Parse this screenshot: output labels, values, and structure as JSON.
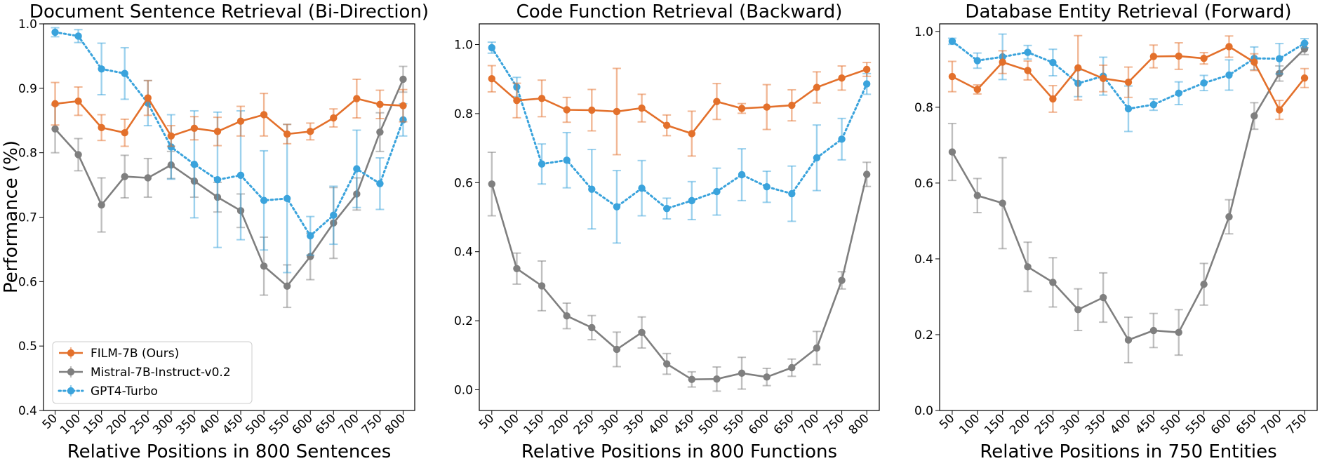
{
  "ylabel": "Performance (%)",
  "colors": {
    "FILM-7B (Ours)": "#e3702b",
    "Mistral-7B-Instruct-v0.2": "#7f7f7f",
    "GPT4-Turbo": "#3aa3dc"
  },
  "legend": {
    "entries": [
      "FILM-7B (Ours)",
      "Mistral-7B-Instruct-v0.2",
      "GPT4-Turbo"
    ],
    "placement": "lower-left of first panel"
  },
  "chart_data": [
    {
      "type": "line",
      "title": "Document Sentence Retrieval (Bi-Direction)",
      "xlabel": "Relative Positions in 800 Sentences",
      "ylabel": "Performance (%)",
      "categories": [
        "50",
        "100",
        "150",
        "200",
        "250",
        "300",
        "350",
        "400",
        "450",
        "500",
        "550",
        "600",
        "650",
        "700",
        "750",
        "800"
      ],
      "ylim": [
        0.4,
        1.0
      ],
      "yticks": [
        "0.4",
        "0.5",
        "0.6",
        "0.7",
        "0.8",
        "0.9",
        "1.0"
      ],
      "series": [
        {
          "name": "FILM-7B (Ours)",
          "style": "solid",
          "values": [
            0.876,
            0.88,
            0.839,
            0.831,
            0.885,
            0.826,
            0.838,
            0.833,
            0.849,
            0.859,
            0.829,
            0.833,
            0.854,
            0.884,
            0.875,
            0.873
          ],
          "errors": [
            0.033,
            0.022,
            0.02,
            0.021,
            0.027,
            0.016,
            0.018,
            0.022,
            0.023,
            0.033,
            0.015,
            0.013,
            0.014,
            0.03,
            0.022,
            0.025
          ]
        },
        {
          "name": "Mistral-7B-Instruct-v0.2",
          "style": "solid",
          "values": [
            0.837,
            0.797,
            0.719,
            0.763,
            0.761,
            0.781,
            0.756,
            0.731,
            0.71,
            0.624,
            0.593,
            0.639,
            0.691,
            0.736,
            0.832,
            0.914
          ],
          "errors": [
            0.037,
            0.025,
            0.042,
            0.033,
            0.03,
            0.021,
            0.025,
            0.023,
            0.026,
            0.045,
            0.033,
            0.036,
            0.055,
            0.025,
            0.03,
            0.02
          ]
        },
        {
          "name": "GPT4-Turbo",
          "style": "dotted",
          "values": [
            0.987,
            0.981,
            0.93,
            0.923,
            0.877,
            0.809,
            0.782,
            0.758,
            0.765,
            0.726,
            0.729,
            0.671,
            0.703,
            0.775,
            0.752,
            0.851
          ],
          "errors": [
            0.007,
            0.01,
            0.04,
            0.04,
            0.035,
            0.05,
            0.083,
            0.105,
            0.1,
            0.077,
            0.115,
            0.03,
            0.045,
            0.06,
            0.04,
            0.025
          ]
        }
      ]
    },
    {
      "type": "line",
      "title": "Code Function Retrieval (Backward)",
      "xlabel": "Relative Positions in 800 Functions",
      "categories": [
        "50",
        "100",
        "150",
        "200",
        "250",
        "300",
        "350",
        "400",
        "450",
        "500",
        "550",
        "600",
        "650",
        "700",
        "750",
        "800"
      ],
      "ylim": [
        -0.06,
        1.06
      ],
      "yticks": [
        "0.0",
        "0.2",
        "0.4",
        "0.6",
        "0.8",
        "1.0"
      ],
      "series": [
        {
          "name": "FILM-7B (Ours)",
          "style": "solid",
          "values": [
            0.901,
            0.838,
            0.844,
            0.811,
            0.81,
            0.806,
            0.816,
            0.766,
            0.742,
            0.835,
            0.815,
            0.819,
            0.824,
            0.876,
            0.903,
            0.928
          ],
          "errors": [
            0.038,
            0.05,
            0.053,
            0.036,
            0.06,
            0.125,
            0.04,
            0.03,
            0.065,
            0.052,
            0.014,
            0.065,
            0.045,
            0.045,
            0.035,
            0.02
          ]
        },
        {
          "name": "Mistral-7B-Instruct-v0.2",
          "style": "solid",
          "values": [
            0.596,
            0.351,
            0.301,
            0.214,
            0.18,
            0.117,
            0.166,
            0.075,
            0.03,
            0.031,
            0.048,
            0.037,
            0.064,
            0.121,
            0.317,
            0.624
          ],
          "errors": [
            0.092,
            0.045,
            0.072,
            0.037,
            0.035,
            0.05,
            0.045,
            0.03,
            0.022,
            0.035,
            0.046,
            0.025,
            0.025,
            0.048,
            0.025,
            0.035
          ]
        },
        {
          "name": "GPT4-Turbo",
          "style": "dotted",
          "values": [
            0.991,
            0.877,
            0.654,
            0.665,
            0.581,
            0.53,
            0.584,
            0.525,
            0.548,
            0.574,
            0.623,
            0.588,
            0.568,
            0.672,
            0.726,
            0.886
          ],
          "errors": [
            0.016,
            0.028,
            0.058,
            0.08,
            0.115,
            0.105,
            0.08,
            0.03,
            0.055,
            0.068,
            0.075,
            0.045,
            0.08,
            0.095,
            0.06,
            0.03
          ]
        }
      ]
    },
    {
      "type": "line",
      "title": "Database Entity Retrieval (Forward)",
      "xlabel": "Relative Positions in 750 Entities",
      "categories": [
        "50",
        "100",
        "150",
        "200",
        "250",
        "300",
        "350",
        "400",
        "450",
        "500",
        "550",
        "600",
        "650",
        "700",
        "750"
      ],
      "ylim": [
        0.0,
        1.02
      ],
      "yticks": [
        "0.0",
        "0.2",
        "0.4",
        "0.6",
        "0.8",
        "1.0"
      ],
      "series": [
        {
          "name": "FILM-7B (Ours)",
          "style": "solid",
          "values": [
            0.881,
            0.847,
            0.919,
            0.897,
            0.822,
            0.904,
            0.876,
            0.866,
            0.934,
            0.935,
            0.929,
            0.96,
            0.919,
            0.793,
            0.877
          ],
          "errors": [
            0.04,
            0.012,
            0.03,
            0.025,
            0.035,
            0.085,
            0.035,
            0.04,
            0.03,
            0.035,
            0.015,
            0.028,
            0.022,
            0.025,
            0.025
          ]
        },
        {
          "name": "Mistral-7B-Instruct-v0.2",
          "style": "solid",
          "values": [
            0.682,
            0.567,
            0.547,
            0.379,
            0.338,
            0.266,
            0.298,
            0.186,
            0.211,
            0.206,
            0.333,
            0.511,
            0.777,
            0.889,
            0.954
          ],
          "errors": [
            0.075,
            0.045,
            0.12,
            0.065,
            0.065,
            0.055,
            0.065,
            0.06,
            0.045,
            0.06,
            0.055,
            0.045,
            0.035,
            0.02,
            0.015
          ]
        },
        {
          "name": "GPT4-Turbo",
          "style": "dotted",
          "values": [
            0.974,
            0.923,
            0.933,
            0.945,
            0.918,
            0.863,
            0.882,
            0.796,
            0.807,
            0.837,
            0.864,
            0.885,
            0.929,
            0.928,
            0.969
          ],
          "errors": [
            0.008,
            0.02,
            0.06,
            0.018,
            0.035,
            0.035,
            0.05,
            0.06,
            0.015,
            0.03,
            0.02,
            0.04,
            0.03,
            0.04,
            0.012
          ]
        }
      ]
    }
  ]
}
